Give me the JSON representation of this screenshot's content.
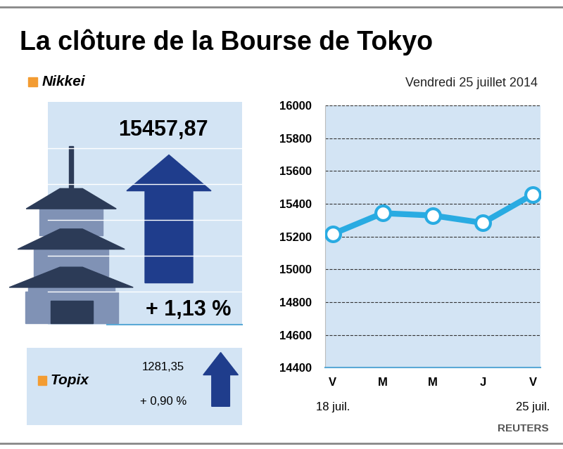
{
  "chart_data": {
    "type": "line",
    "title": "La clôture de la Bourse de Tokyo",
    "subtitle": "Vendredi 25 juillet 2014",
    "source": "REUTERS",
    "categories": [
      "V",
      "M",
      "M",
      "J",
      "V"
    ],
    "date_labels": [
      "18 juil.",
      null,
      null,
      null,
      "25 juil."
    ],
    "values": [
      15216,
      15343,
      15329,
      15284,
      15457.87
    ],
    "color": "#29abe2",
    "marker": "o",
    "ylim": [
      14400,
      16000
    ],
    "yticks": [
      14400,
      14600,
      14800,
      15000,
      15200,
      15400,
      15600,
      15800,
      16000
    ],
    "grid": true
  },
  "indices": [
    {
      "name": "Nikkei",
      "value": 15457.87,
      "value_label": "15457,87",
      "change": 1.13,
      "change_label": "+ 1,13 %"
    },
    {
      "name": "Topix",
      "value": 1281.35,
      "value_label": "1281,35",
      "change": 0.9,
      "change_label": "+ 0,90 %"
    }
  ]
}
